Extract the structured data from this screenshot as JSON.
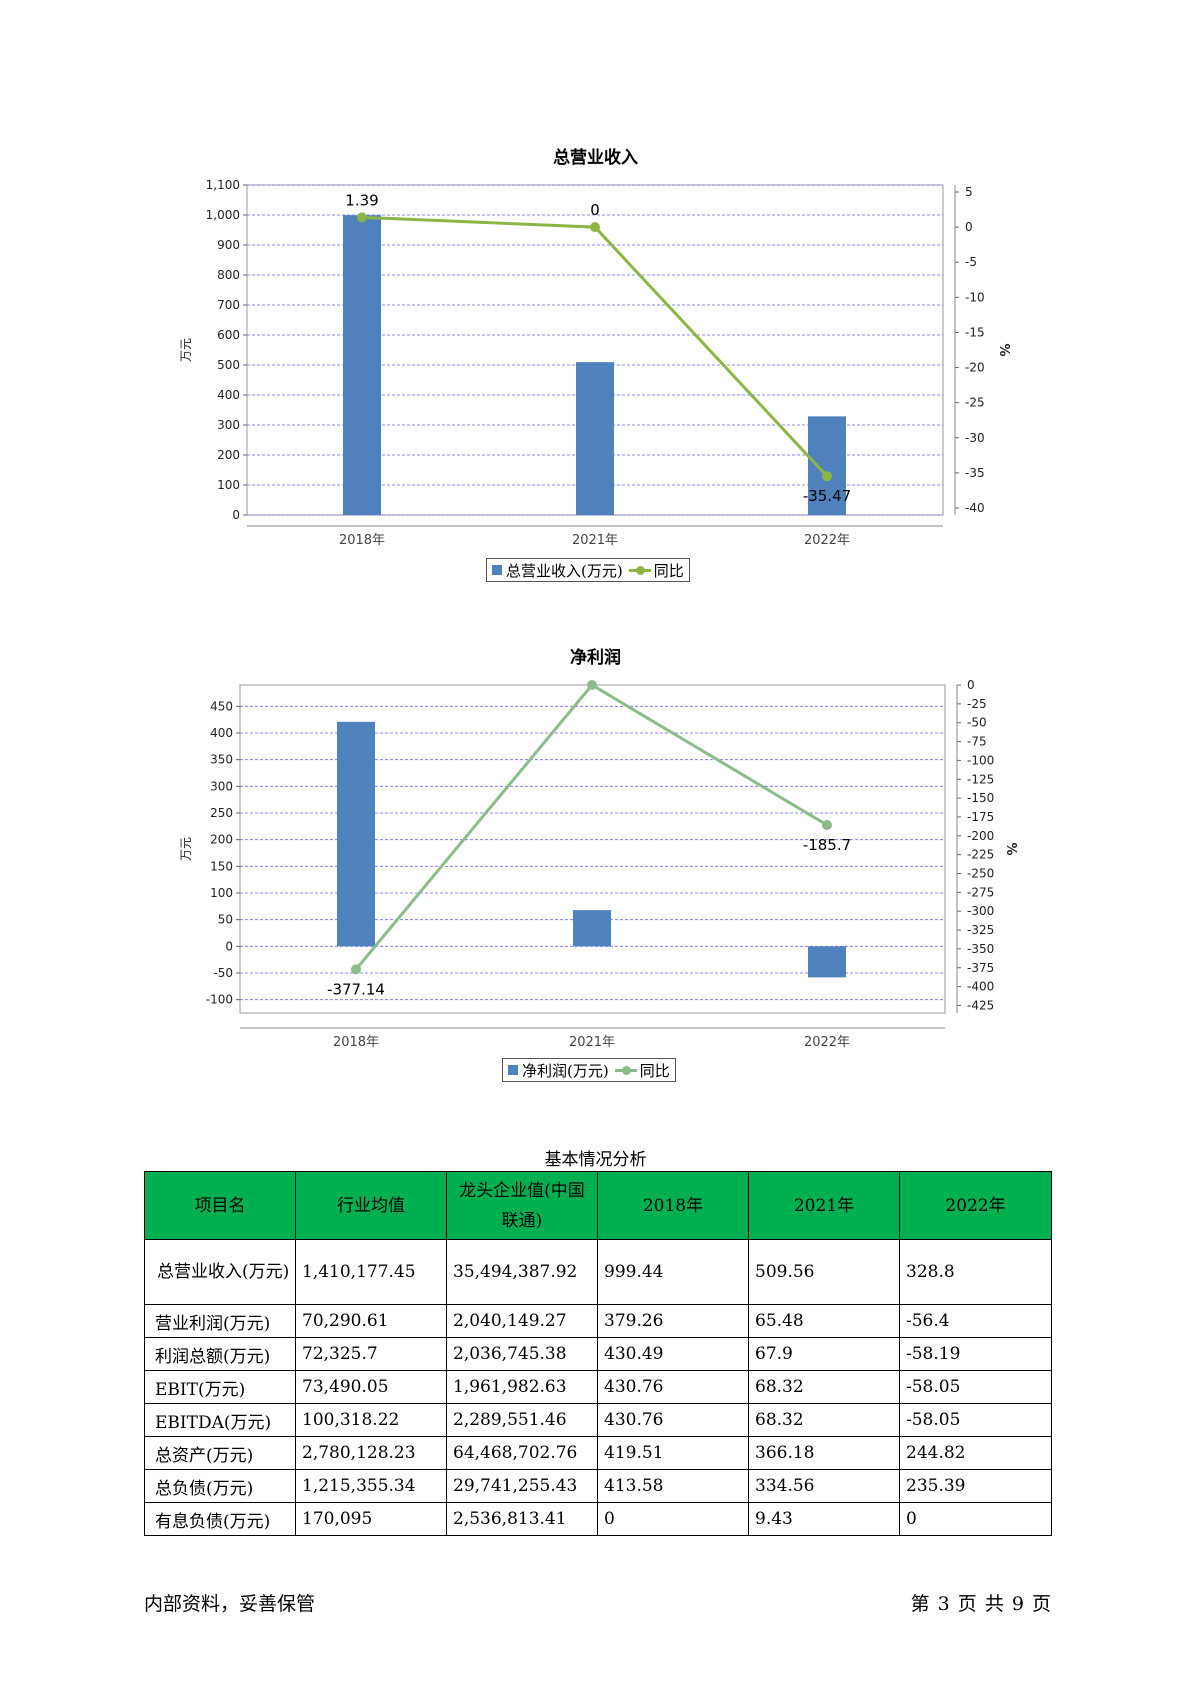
{
  "charts": [
    {
      "title": "总营业收入",
      "y_label": "万元",
      "y2_label": "%",
      "legend_bar": "总营业收入(万元)",
      "legend_line": "同比",
      "bar_color": "#4f81bd",
      "line_color": "#8db544"
    },
    {
      "title": "净利润",
      "y_label": "万元",
      "y2_label": "%",
      "legend_bar": "净利润(万元)",
      "legend_line": "同比",
      "bar_color": "#4f81bd",
      "line_color": "#8bbd8b"
    }
  ],
  "chart_data": [
    {
      "type": "bar",
      "title": "总营业收入",
      "categories": [
        "2018年",
        "2021年",
        "2022年"
      ],
      "series": [
        {
          "name": "总营业收入(万元)",
          "type": "bar",
          "axis": "left",
          "values": [
            999.44,
            509.56,
            328.8
          ]
        },
        {
          "name": "同比",
          "type": "line",
          "axis": "right",
          "values": [
            1.39,
            0,
            -35.47
          ]
        }
      ],
      "ylabel": "万元",
      "y2label": "%",
      "ylim": [
        0,
        1100
      ],
      "yticks": [
        0,
        100,
        200,
        300,
        400,
        500,
        600,
        700,
        800,
        900,
        1000,
        1100
      ],
      "yticklabels": [
        "0",
        "100",
        "200",
        "300",
        "400",
        "500",
        "600",
        "700",
        "800",
        "900",
        "1,000",
        "1,100"
      ],
      "y2lim": [
        -41,
        6
      ],
      "y2ticks": [
        5,
        0,
        -5,
        -10,
        -15,
        -20,
        -25,
        -30,
        -35,
        -40
      ],
      "data_labels": [
        "1.39",
        "0",
        "-35.47"
      ],
      "grid": true,
      "legend": "bottom"
    },
    {
      "type": "bar",
      "title": "净利润",
      "categories": [
        "2018年",
        "2021年",
        "2022年"
      ],
      "series": [
        {
          "name": "净利润(万元)",
          "type": "bar",
          "axis": "left",
          "values": [
            421.0,
            67.9,
            -58.19
          ]
        },
        {
          "name": "同比",
          "type": "line",
          "axis": "right",
          "values": [
            -377.14,
            0,
            -185.7
          ]
        }
      ],
      "ylabel": "万元",
      "y2label": "%",
      "ylim": [
        -125,
        490
      ],
      "yticks": [
        -100,
        -50,
        0,
        50,
        100,
        150,
        200,
        250,
        300,
        350,
        400,
        450
      ],
      "yticklabels": [
        "-100",
        "-50",
        "0",
        "50",
        "100",
        "150",
        "200",
        "250",
        "300",
        "350",
        "400",
        "450"
      ],
      "y2lim": [
        -435,
        0
      ],
      "y2ticks": [
        0,
        -25,
        -50,
        -75,
        -100,
        -125,
        -150,
        -175,
        -200,
        -225,
        -250,
        -275,
        -300,
        -325,
        -350,
        -375,
        -400,
        -425
      ],
      "data_labels": [
        "-377.14",
        "",
        "-185.7"
      ],
      "grid": true,
      "legend": "bottom"
    }
  ],
  "table": {
    "caption": "基本情况分析",
    "header_color": "#00b050",
    "headers": [
      "项目名",
      "行业均值",
      "龙头企业值(中国联通)",
      "2018年",
      "2021年",
      "2022年"
    ],
    "rows": [
      [
        "总营业收入(万元)",
        "1,410,177.45",
        "35,494,387.92",
        "999.44",
        "509.56",
        "328.8"
      ],
      [
        "营业利润(万元)",
        "70,290.61",
        "2,040,149.27",
        "379.26",
        "65.48",
        "-56.4"
      ],
      [
        "利润总额(万元)",
        "72,325.7",
        "2,036,745.38",
        "430.49",
        "67.9",
        "-58.19"
      ],
      [
        "EBIT(万元)",
        "73,490.05",
        "1,961,982.63",
        "430.76",
        "68.32",
        "-58.05"
      ],
      [
        "EBITDA(万元)",
        "100,318.22",
        "2,289,551.46",
        "430.76",
        "68.32",
        "-58.05"
      ],
      [
        "总资产(万元)",
        "2,780,128.23",
        "64,468,702.76",
        "419.51",
        "366.18",
        "244.82"
      ],
      [
        "总负债(万元)",
        "1,215,355.34",
        "29,741,255.43",
        "413.58",
        "334.56",
        "235.39"
      ],
      [
        "有息负债(万元)",
        "170,095",
        "2,536,813.41",
        "0",
        "9.43",
        "0"
      ]
    ]
  },
  "footer": {
    "left": "内部资料，妥善保管",
    "right": "第 3 页  共 9 页"
  }
}
